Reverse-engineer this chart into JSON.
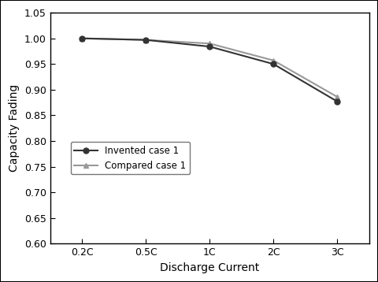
{
  "x_labels": [
    "0.2C",
    "0.5C",
    "1C",
    "2C",
    "3C"
  ],
  "x_values": [
    0,
    1,
    2,
    3,
    4
  ],
  "invented_case1": [
    1.0,
    0.997,
    0.984,
    0.95,
    0.877
  ],
  "compared_case1": [
    1.0,
    0.997,
    0.99,
    0.957,
    0.886
  ],
  "invented_color": "#333333",
  "compared_color": "#999999",
  "ylabel": "Capacity Fading",
  "xlabel": "Discharge Current",
  "ylim": [
    0.6,
    1.05
  ],
  "yticks": [
    0.6,
    0.65,
    0.7,
    0.75,
    0.8,
    0.85,
    0.9,
    0.95,
    1.0,
    1.05
  ],
  "legend_labels": [
    "Invented case 1",
    "Compared case 1"
  ],
  "background_color": "#ffffff",
  "plot_bg_color": "#ffffff",
  "border_color": "#000000",
  "linewidth": 1.5,
  "markersize": 5,
  "invented_marker": "o",
  "compared_marker": "^"
}
